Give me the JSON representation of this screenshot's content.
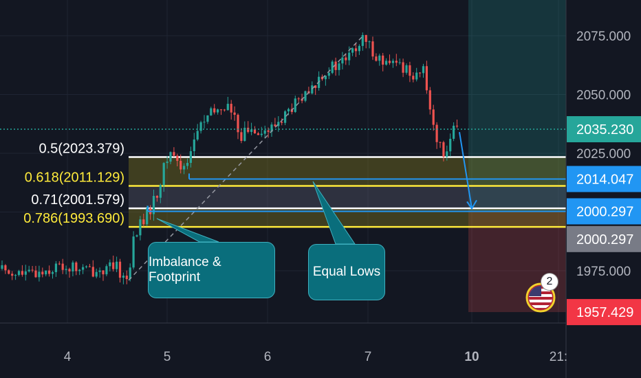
{
  "chart_data": {
    "type": "candlestick",
    "x_ticks": [
      "4",
      "5",
      "6",
      "7",
      "10",
      "21:"
    ],
    "y_ticks": [
      "2075.000",
      "2050.000",
      "2025.000",
      "1975.000"
    ],
    "ylim": [
      1950,
      2090
    ],
    "current_price": "2035.230",
    "current_price_value": 2035.23,
    "price_tags": [
      {
        "label": "2014.047",
        "value": 2014.047,
        "color": "#2196f3"
      },
      {
        "label": "2000.297",
        "value": 2000.297,
        "color": "#2196f3"
      },
      {
        "label": "2000.297",
        "value": 1988.5,
        "color": "#787b86"
      },
      {
        "label": "1957.429",
        "value": 1957.429,
        "color": "#f23645"
      }
    ],
    "fib_levels": [
      {
        "label": "0.5(2023.379)",
        "value": 2023.379,
        "color": "#ffffff"
      },
      {
        "label": "0.618(2011.129)",
        "value": 2011.129,
        "color": "#ffeb3b"
      },
      {
        "label": "0.71(2001.579)",
        "value": 2001.579,
        "color": "#ffffff"
      },
      {
        "label": "0.786(1993.690)",
        "value": 1993.69,
        "color": "#ffeb3b"
      }
    ],
    "annotations": [
      "Imbalance & Footprint",
      "Equal Lows"
    ],
    "colors": {
      "up": "#26a69a",
      "down": "#ef5350",
      "background": "#131722",
      "current": "#26a69a"
    },
    "grid": true
  },
  "alerts_badge": "2"
}
